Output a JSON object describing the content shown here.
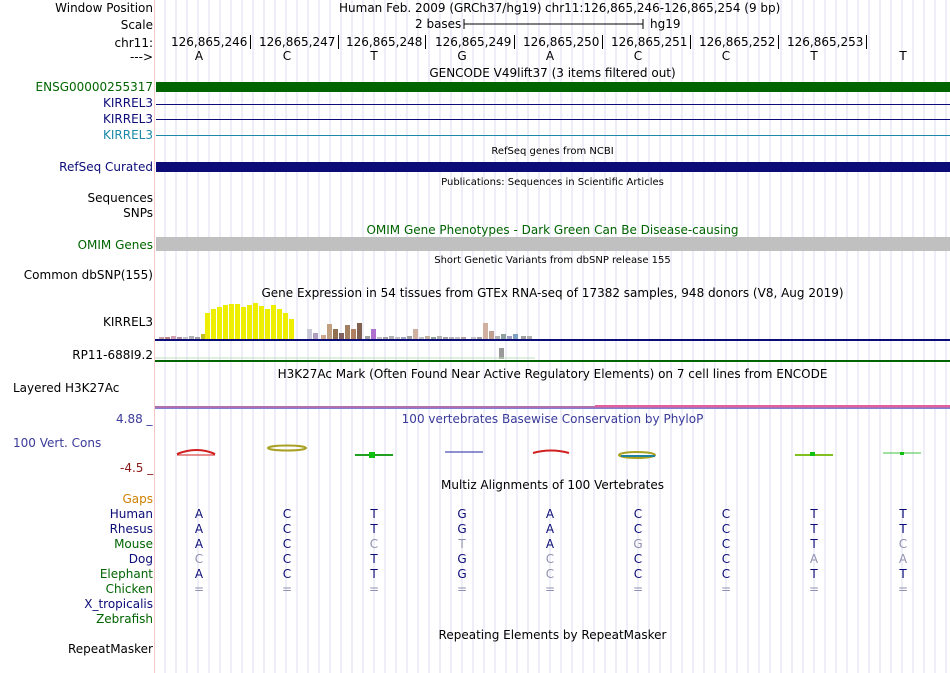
{
  "header": {
    "window_position_label": "Window Position",
    "scale_label": "Scale",
    "chrom_label": "chr11:",
    "strand_label": "--->",
    "assembly": "Human Feb. 2009 (GRCh37/hg19)",
    "position": "chr11:126,865,246-126,865,254 (9 bp)",
    "scale_text": "2 bases",
    "db": "hg19",
    "coordinates": [
      "126,865,246",
      "126,865,247",
      "126,865,248",
      "126,865,249",
      "126,865,250",
      "126,865,251",
      "126,865,252",
      "126,865,253"
    ],
    "bases": [
      "A",
      "C",
      "T",
      "G",
      "A",
      "C",
      "C",
      "T",
      "T"
    ]
  },
  "tracks": {
    "gencode": {
      "title": "GENCODE V49lift37 (3 items filtered out)",
      "items": [
        {
          "name": "ENSG00000255317",
          "color": "#006400"
        },
        {
          "name": "KIRREL3",
          "color": "#0c0c78"
        },
        {
          "name": "KIRREL3",
          "color": "#0c0c78"
        },
        {
          "name": "KIRREL3",
          "color": "#1a8aa8"
        }
      ]
    },
    "refseq": {
      "title": "RefSeq genes from NCBI",
      "label": "RefSeq Curated",
      "color": "#0c0c78"
    },
    "publications": {
      "title": "Publications: Sequences in Scientific Articles",
      "labels": [
        "Sequences",
        "SNPs"
      ]
    },
    "omim": {
      "title": "OMIM Gene Phenotypes - Dark Green Can Be Disease-causing",
      "label": "OMIM Genes",
      "color": "#006400",
      "bar_color": "#c0c0c0"
    },
    "dbsnp": {
      "title": "Short Genetic Variants from dbSNP release 155",
      "label": "Common dbSNP(155)"
    },
    "gtex": {
      "title": "Gene Expression in 54 tissues from GTEx RNA-seq of 17382 samples, 948 donors (V8, Aug 2019)",
      "labels": [
        "KIRREL3",
        "RP11-688I9.2"
      ]
    },
    "h3k27ac": {
      "title": "H3K27Ac Mark (Often Found Near Active Regulatory Elements) on 7 cell lines from ENCODE",
      "label": "Layered H3K27Ac"
    },
    "phylop": {
      "title": "100 vertebrates Basewise Conservation by PhyloP",
      "label": "100 Vert. Cons",
      "max": "4.88 _",
      "min": "-4.5 _",
      "title_color": "#3a3a9a"
    },
    "multiz": {
      "title": "Multiz Alignments of 100 Vertebrates",
      "title_color": "#1a1a8a",
      "gaps_label": "Gaps",
      "species": [
        {
          "name": "Human",
          "color": "#0c0c78",
          "bases": [
            "A",
            "C",
            "T",
            "G",
            "A",
            "C",
            "C",
            "T",
            "T"
          ]
        },
        {
          "name": "Rhesus",
          "color": "#0c0c78",
          "bases": [
            "A",
            "C",
            "T",
            "G",
            "A",
            "C",
            "C",
            "T",
            "T"
          ]
        },
        {
          "name": "Mouse",
          "color": "#006400",
          "bases": [
            "A",
            "C",
            "C",
            "T",
            "A",
            "G",
            "C",
            "T",
            "C"
          ]
        },
        {
          "name": "Dog",
          "color": "#0c0c78",
          "bases": [
            "C",
            "C",
            "T",
            "G",
            "C",
            "C",
            "C",
            "A",
            "A"
          ]
        },
        {
          "name": "Elephant",
          "color": "#006400",
          "bases": [
            "A",
            "C",
            "T",
            "G",
            "C",
            "C",
            "C",
            "T",
            "T"
          ]
        },
        {
          "name": "Chicken",
          "color": "#006400",
          "bases": [
            "=",
            "=",
            "=",
            "=",
            "=",
            "=",
            "=",
            "=",
            "="
          ]
        },
        {
          "name": "X_tropicalis",
          "color": "#0c0c78",
          "bases": [
            "",
            "",
            "",
            "",
            "",
            "",
            "",
            "",
            ""
          ]
        },
        {
          "name": "Zebrafish",
          "color": "#006400",
          "bases": [
            "",
            "",
            "",
            "",
            "",
            "",
            "",
            "",
            ""
          ]
        }
      ]
    },
    "repeatmasker": {
      "title": "Repeating Elements by RepeatMasker",
      "label": "RepeatMasker"
    }
  },
  "colors": {
    "gencode_bar": "#006400",
    "refseq_bar": "#0c0c78",
    "gaps_label": "#d08000",
    "phylop_min": "#8b1a1a"
  }
}
